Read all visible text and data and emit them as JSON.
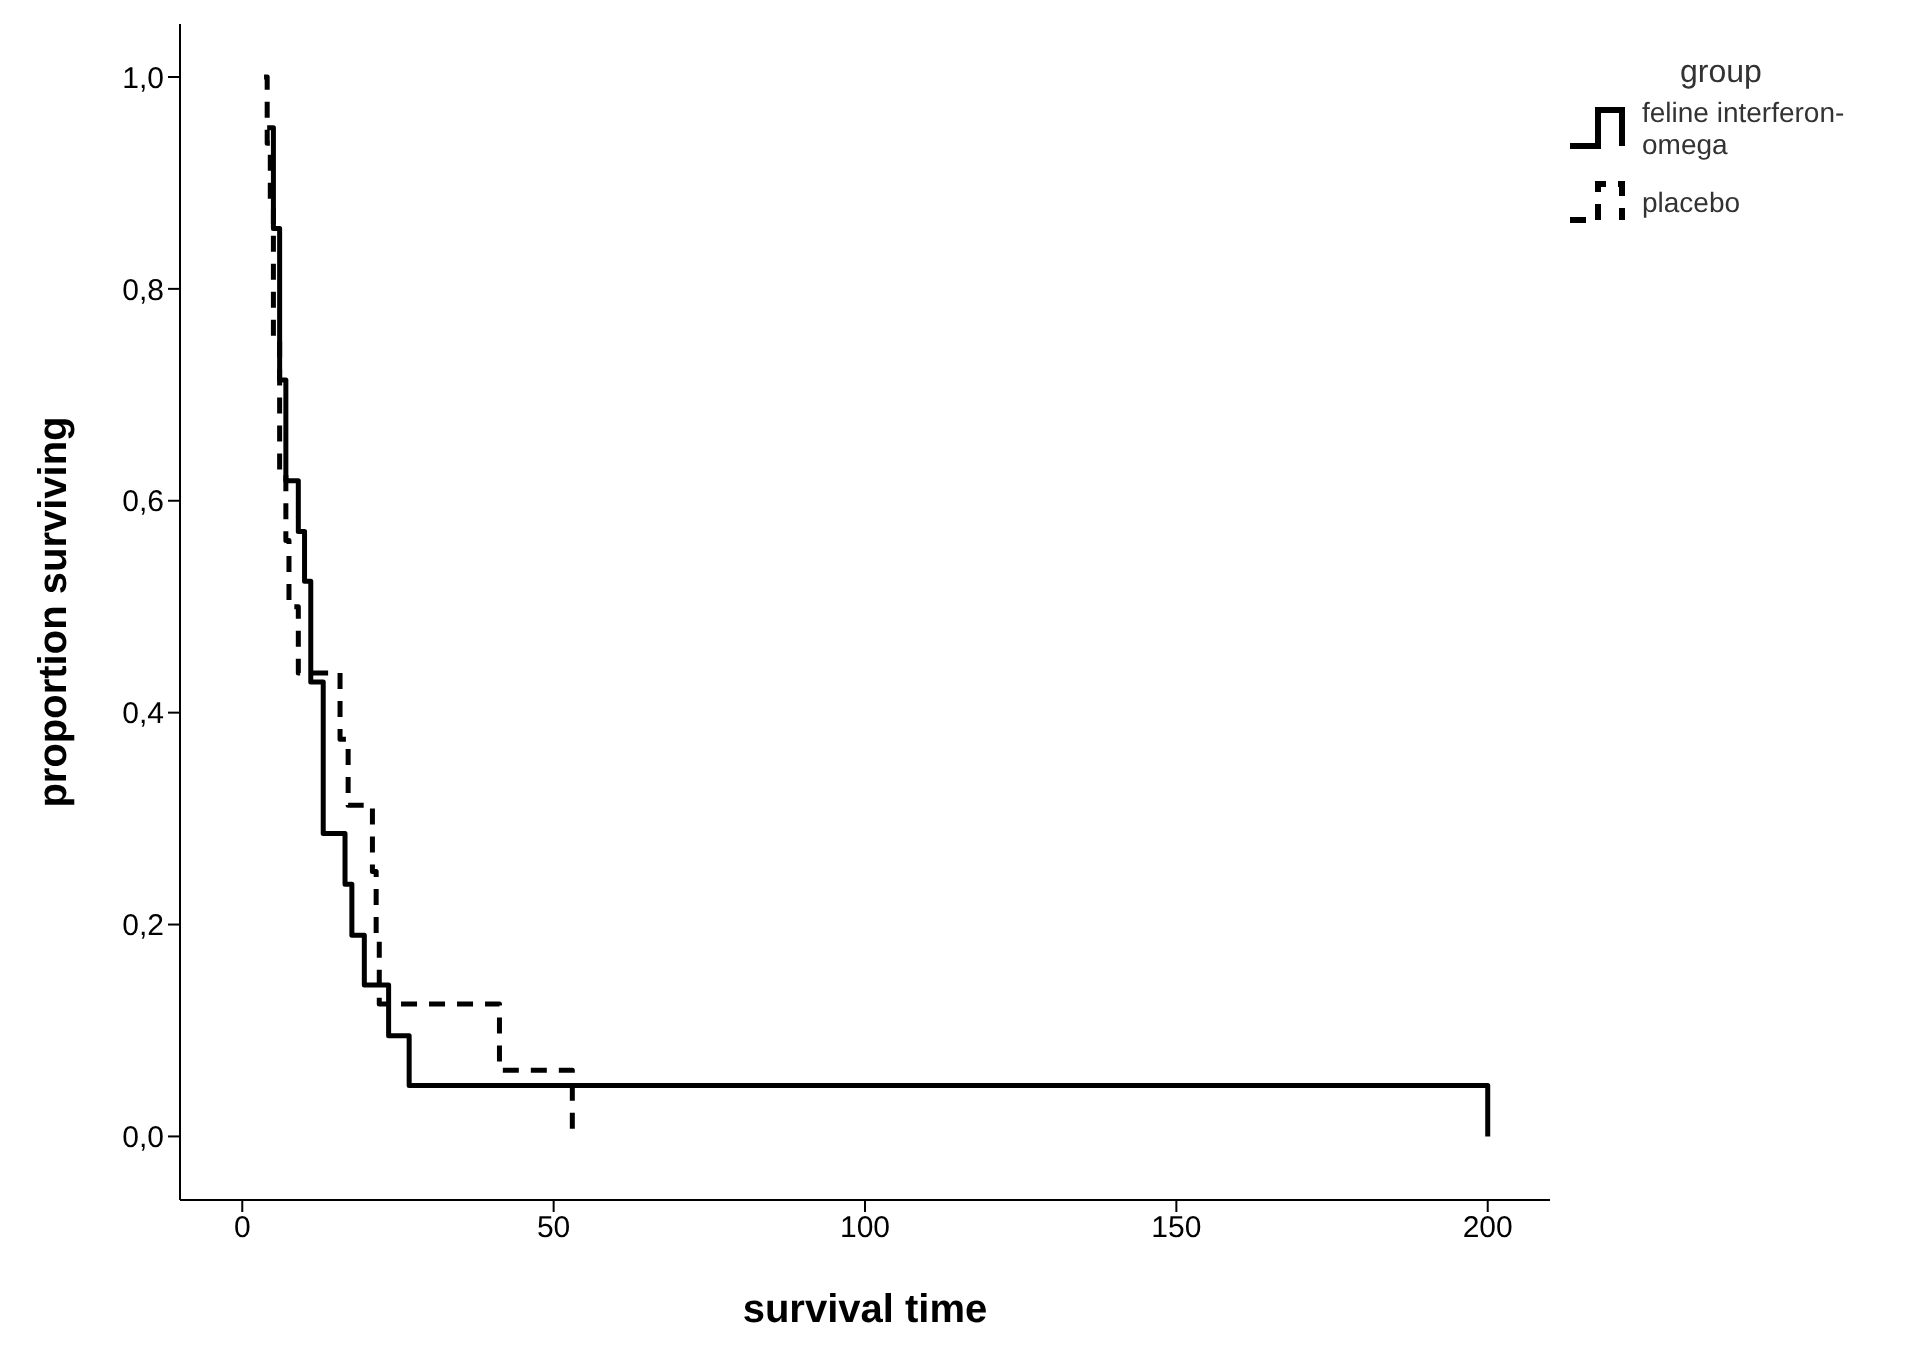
{
  "chart_data": {
    "type": "step",
    "xlabel": "survival time",
    "ylabel": "proportion surviving",
    "legend_title": "group",
    "legend": "top right",
    "grid": false,
    "xlim": [
      -10,
      210
    ],
    "xticks": [
      0,
      50,
      100,
      150,
      200
    ],
    "ylim": [
      -0.06,
      1.05
    ],
    "yticks": [
      {
        "value": 0,
        "label": "0,0"
      },
      {
        "value": 0.2,
        "label": "0,2"
      },
      {
        "value": 0.4,
        "label": "0,4"
      },
      {
        "value": 0.6,
        "label": "0,6"
      },
      {
        "value": 0.8,
        "label": "0,8"
      },
      {
        "value": 1,
        "label": "1,0"
      }
    ],
    "series": [
      {
        "name": "feline interferon-omega",
        "color": "#000000",
        "line_style": "solid",
        "x": [
          4,
          5,
          6,
          7,
          9,
          10,
          11,
          13,
          16.5,
          17.6,
          19.6,
          23.5,
          26.8,
          200
        ],
        "values": [
          0.952,
          0.857,
          0.714,
          0.619,
          0.571,
          0.524,
          0.429,
          0.286,
          0.238,
          0.19,
          0.143,
          0.095,
          0.048,
          0
        ]
      },
      {
        "name": "placebo",
        "color": "#000000",
        "line_style": "dashed",
        "x": [
          3.5,
          4,
          4.5,
          5,
          6,
          7,
          7.5,
          9,
          15.7,
          17,
          20.9,
          21.5,
          22,
          41.3,
          53
        ],
        "values": [
          1,
          0.9375,
          0.875,
          0.75,
          0.625,
          0.5625,
          0.5,
          0.4375,
          0.375,
          0.3125,
          0.25,
          0.1875,
          0.125,
          0.0625,
          0
        ]
      }
    ]
  }
}
